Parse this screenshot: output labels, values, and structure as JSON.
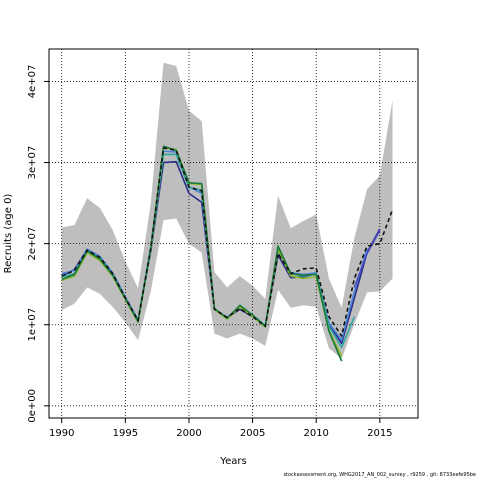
{
  "chart_data": {
    "type": "line",
    "title": "",
    "xlabel": "Years",
    "ylabel": "Recruits (age 0)",
    "xlim": [
      1989,
      2018
    ],
    "ylim": [
      -1500000,
      44000000
    ],
    "x_ticks": [
      1990,
      1995,
      2000,
      2005,
      2010,
      2015
    ],
    "y_ticks": [
      0,
      10000000,
      20000000,
      30000000,
      40000000
    ],
    "y_tick_labels": [
      "0e+00",
      "1e+07",
      "2e+07",
      "3e+07",
      "4e+07"
    ],
    "grid": true,
    "band": {
      "color": "#bebebe",
      "x": [
        1990,
        1991,
        1992,
        1993,
        1994,
        1995,
        1996,
        1997,
        1998,
        1999,
        2000,
        2001,
        2002,
        2003,
        2004,
        2005,
        2006,
        2007,
        2008,
        2009,
        2010,
        2011,
        2012,
        2013,
        2014,
        2015,
        2016
      ],
      "upper": [
        22000000,
        22300000,
        25600000,
        24400000,
        21700000,
        17800000,
        14500000,
        25000000,
        42300000,
        41900000,
        36400000,
        35100000,
        16500000,
        14600000,
        16000000,
        14800000,
        13200000,
        25900000,
        21900000,
        22800000,
        23600000,
        15700000,
        12100000,
        20700000,
        26700000,
        28400000,
        37700000
      ],
      "lower": [
        11800000,
        12600000,
        14600000,
        13800000,
        12200000,
        10300000,
        8100000,
        14100000,
        22900000,
        23100000,
        20000000,
        18900000,
        8900000,
        8300000,
        8900000,
        8300000,
        7400000,
        14300000,
        12100000,
        12400000,
        12200000,
        7100000,
        5800000,
        10100000,
        14000000,
        14100000,
        15700000
      ]
    },
    "series": [
      {
        "color": "#2d2d8a",
        "dash": false,
        "x": [
          1990,
          1991,
          1992,
          1993,
          1994,
          1995,
          1996,
          1997,
          1998,
          1999,
          2000,
          2001,
          2002,
          2003,
          2004,
          2005,
          2006,
          2007,
          2008,
          2009,
          2010,
          2011,
          2012,
          2013,
          2014,
          2015
        ],
        "y": [
          16000000,
          16800000,
          19300000,
          18400000,
          16400000,
          13400000,
          10600000,
          19100000,
          30000000,
          30100000,
          26200000,
          25100000,
          11900000,
          10900000,
          11900000,
          11000000,
          9900000,
          18600000,
          15800000,
          15900000,
          16300000,
          10100000,
          7700000,
          13300000,
          18900000,
          21800000
        ]
      },
      {
        "color": "#4a83d8",
        "dash": false,
        "x": [
          1990,
          1991,
          1992,
          1993,
          1994,
          1995,
          1996,
          1997,
          1998,
          1999,
          2000,
          2001,
          2002,
          2003,
          2004,
          2005,
          2006,
          2007,
          2008,
          2009,
          2010,
          2011,
          2012,
          2013,
          2014
        ],
        "y": [
          16300000,
          16700000,
          19300000,
          18400000,
          16400000,
          13400000,
          10600000,
          19600000,
          31400000,
          31300000,
          27000000,
          26200000,
          11900000,
          10900000,
          12200000,
          11100000,
          9900000,
          19000000,
          16400000,
          16200000,
          16400000,
          10200000,
          8100000,
          14100000,
          19400000
        ]
      },
      {
        "color": "#2fa8a0",
        "dash": false,
        "x": [
          1990,
          1991,
          1992,
          1993,
          1994,
          1995,
          1996,
          1997,
          1998,
          1999,
          2000,
          2001,
          2002,
          2003,
          2004,
          2005,
          2006,
          2007,
          2008,
          2009,
          2010,
          2011,
          2012,
          2013
        ],
        "y": [
          15900000,
          16300000,
          19100000,
          18200000,
          16200000,
          13300000,
          10500000,
          19200000,
          31000000,
          31000000,
          26900000,
          26600000,
          11900000,
          10800000,
          12300000,
          11200000,
          9900000,
          19300000,
          16300000,
          16000000,
          16300000,
          9800000,
          7200000,
          11000000
        ]
      },
      {
        "color": "#8ab82a",
        "dash": false,
        "x": [
          1990,
          1991,
          1992,
          1993,
          1994,
          1995,
          1996,
          1997,
          1998,
          1999,
          2000,
          2001,
          2002,
          2003,
          2004,
          2005,
          2006,
          2007,
          2008,
          2009,
          2010,
          2011,
          2012
        ],
        "y": [
          15500000,
          16000000,
          18900000,
          17900000,
          16000000,
          13100000,
          10300000,
          19400000,
          31800000,
          31600000,
          27400000,
          27300000,
          11900000,
          10700000,
          12200000,
          11000000,
          9700000,
          19300000,
          16000000,
          15700000,
          15900000,
          9300000,
          6100000
        ]
      },
      {
        "color": "#1a7a3a",
        "dash": false,
        "x": [
          1990,
          1991,
          1992,
          1993,
          1994,
          1995,
          1996,
          1997,
          1998,
          1999,
          2000,
          2001,
          2002,
          2003,
          2004,
          2005,
          2006,
          2007,
          2008,
          2009,
          2010,
          2011,
          2012
        ],
        "y": [
          15600000,
          16200000,
          19100000,
          18100000,
          16100000,
          13200000,
          10400000,
          19500000,
          32000000,
          31500000,
          27500000,
          27400000,
          12000000,
          10800000,
          12400000,
          11200000,
          9800000,
          19700000,
          16300000,
          16100000,
          16200000,
          9200000,
          5500000
        ]
      },
      {
        "color": "#4a4abf",
        "dash": false,
        "x": [
          2013,
          2014,
          2015
        ],
        "y": [
          14600000,
          18800000,
          21600000
        ]
      },
      {
        "color": "#111111",
        "dash": true,
        "x": [
          1990,
          1991,
          1992,
          1993,
          1994,
          1995,
          1996,
          1997,
          1998,
          1999,
          2000,
          2001,
          2002,
          2003,
          2004,
          2005,
          2006,
          2007,
          2008,
          2009,
          2010,
          2011,
          2012,
          2013,
          2014,
          2015,
          2016
        ],
        "y": [
          16000000,
          16700000,
          19200000,
          18300000,
          16300000,
          13300000,
          10500000,
          19400000,
          31800000,
          31500000,
          27000000,
          26500000,
          11900000,
          10900000,
          12000000,
          11000000,
          9800000,
          18800000,
          16300000,
          16900000,
          17000000,
          11000000,
          8600000,
          15700000,
          19700000,
          20000000,
          24200000
        ]
      }
    ]
  },
  "footer": "stockassessment.org, WHG2017_AN_002_survey , r9259 , git: 8733eefe95be"
}
